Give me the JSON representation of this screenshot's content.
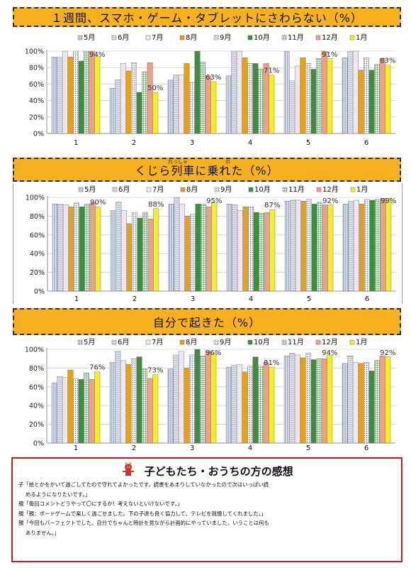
{
  "charts_meta": {
    "legend_labels": [
      "5月",
      "6月",
      "7月",
      "8月",
      "9月",
      "10月",
      "11月",
      "12月",
      "1月"
    ],
    "colors": [
      "#c9d6ea",
      "#c9d6ea",
      "#f3eef3",
      "#e3a21a",
      "#c7cad8",
      "#3e8e3e",
      "#d7eed7",
      "#eba089",
      "#f5ed2a"
    ],
    "patterns": [
      "vline",
      "hline",
      "pink",
      "plain",
      "dots",
      "plain",
      "grid",
      "plain",
      "plain"
    ]
  },
  "chart_data": [
    {
      "type": "bar",
      "title": "１週間、スマホ・ゲーム・タブレットにさわらない（%）",
      "categories": [
        "1",
        "2",
        "3",
        "4",
        "5",
        "6"
      ],
      "y_ticks": [
        "0%",
        "20%",
        "40%",
        "60%",
        "80%",
        "100%"
      ],
      "ylim": [
        0,
        100
      ],
      "series": [
        {
          "name": "5月",
          "values": [
            93,
            55,
            65,
            70,
            100,
            92
          ]
        },
        {
          "name": "6月",
          "values": [
            93,
            65,
            71,
            100,
            64,
            100
          ]
        },
        {
          "name": "7月",
          "values": [
            100,
            85,
            71,
            100,
            82,
            100
          ]
        },
        {
          "name": "8月",
          "values": [
            93,
            76,
            85,
            92,
            92,
            77
          ]
        },
        {
          "name": "9月",
          "values": [
            100,
            86,
            62,
            85,
            85,
            92
          ]
        },
        {
          "name": "10月",
          "values": [
            88,
            50,
            100,
            85,
            78,
            77
          ]
        },
        {
          "name": "11月",
          "values": [
            100,
            75,
            87,
            78,
            91,
            84
          ]
        },
        {
          "name": "12月",
          "values": [
            100,
            86,
            70,
            85,
            100,
            91
          ]
        },
        {
          "name": "1月",
          "values": [
            94,
            50,
            63,
            71,
            91,
            83
          ]
        }
      ],
      "annotations": [
        {
          "category": "1",
          "series": "1月",
          "text": "94%"
        },
        {
          "category": "2",
          "series": "1月",
          "text": "50%"
        },
        {
          "category": "3",
          "series": "1月",
          "text": "63%"
        },
        {
          "category": "4",
          "series": "1月",
          "text": "71%"
        },
        {
          "category": "5",
          "series": "1月",
          "text": "91%"
        },
        {
          "category": "6",
          "series": "1月",
          "text": "83%"
        }
      ]
    },
    {
      "type": "bar",
      "title": "くじら列車に乗れた（%）",
      "ruby": [
        "れっしゃ",
        "の"
      ],
      "categories": [
        "1",
        "2",
        "3",
        "4",
        "5",
        "6"
      ],
      "y_ticks": [
        "0%",
        "20%",
        "40%",
        "60%",
        "80%",
        "100%"
      ],
      "ylim": [
        0,
        100
      ],
      "series": [
        {
          "name": "5月",
          "values": [
            93,
            86,
            93,
            93,
            96,
            93
          ]
        },
        {
          "name": "6月",
          "values": [
            93,
            95,
            100,
            92,
            97,
            96
          ]
        },
        {
          "name": "7月",
          "values": [
            92,
            86,
            93,
            86,
            97,
            97
          ]
        },
        {
          "name": "8月",
          "values": [
            90,
            72,
            80,
            90,
            96,
            93
          ]
        },
        {
          "name": "9月",
          "values": [
            94,
            84,
            82,
            90,
            98,
            98
          ]
        },
        {
          "name": "10月",
          "values": [
            90,
            78,
            93,
            84,
            93,
            97
          ]
        },
        {
          "name": "11月",
          "values": [
            93,
            84,
            93,
            83,
            95,
            98
          ]
        },
        {
          "name": "12月",
          "values": [
            94,
            77,
            90,
            84,
            92,
            99
          ]
        },
        {
          "name": "1月",
          "values": [
            90,
            88,
            95,
            87,
            92,
            99
          ]
        }
      ],
      "annotations": [
        {
          "category": "1",
          "series": "1月",
          "text": "90%"
        },
        {
          "category": "2",
          "series": "1月",
          "text": "88%"
        },
        {
          "category": "3",
          "series": "1月",
          "text": "95%"
        },
        {
          "category": "4",
          "series": "1月",
          "text": "87%"
        },
        {
          "category": "5",
          "series": "1月",
          "text": "92%"
        },
        {
          "category": "6",
          "series": "1月",
          "text": "99%"
        }
      ]
    },
    {
      "type": "bar",
      "title": "自分で起きた（%）",
      "categories": [
        "1",
        "2",
        "3",
        "4",
        "5",
        "6"
      ],
      "y_ticks": [
        "0%",
        "20%",
        "40%",
        "60%",
        "80%",
        "100%"
      ],
      "ylim": [
        0,
        100
      ],
      "series": [
        {
          "name": "5月",
          "values": [
            64,
            86,
            79,
            81,
            93,
            85
          ]
        },
        {
          "name": "6月",
          "values": [
            71,
            98,
            94,
            83,
            96,
            93
          ]
        },
        {
          "name": "7月",
          "values": [
            70,
            88,
            98,
            84,
            94,
            86
          ]
        },
        {
          "name": "8月",
          "values": [
            78,
            84,
            80,
            76,
            91,
            85
          ]
        },
        {
          "name": "9月",
          "values": [
            69,
            90,
            94,
            82,
            96,
            86
          ]
        },
        {
          "name": "10月",
          "values": [
            68,
            92,
            100,
            92,
            89,
            77
          ]
        },
        {
          "name": "11月",
          "values": [
            75,
            79,
            93,
            82,
            90,
            88
          ]
        },
        {
          "name": "12月",
          "values": [
            68,
            69,
            98,
            86,
            90,
            93
          ]
        },
        {
          "name": "1月",
          "values": [
            76,
            73,
            96,
            81,
            94,
            92
          ]
        }
      ],
      "annotations": [
        {
          "category": "1",
          "series": "1月",
          "text": "76%"
        },
        {
          "category": "2",
          "series": "1月",
          "text": "73%"
        },
        {
          "category": "3",
          "series": "1月",
          "text": "96%"
        },
        {
          "category": "4",
          "series": "1月",
          "text": "81%"
        },
        {
          "category": "5",
          "series": "1月",
          "text": "94%"
        },
        {
          "category": "6",
          "series": "1月",
          "text": "92%"
        }
      ]
    }
  ],
  "comments": {
    "title": "子どもたち・おうちの方の感想",
    "lines": [
      "子「絵とかをかいて過ごしてたので守れてよかったです。読書をあまりしていなかったので次はいっぱい読",
      "めるようになりたいです。」",
      "親「毎回コメントどうやって〇にするか！考えないといけないです。」",
      "親「親：ボードゲームで楽しく過ごせました。下の子達も良く協力して、テレビを我慢してくれました。」",
      "親「今回もパーフェクトでした。自分でちゃんと時計を見ながら計画的にやっていました。いうことは何も",
      "ありません。」"
    ]
  }
}
